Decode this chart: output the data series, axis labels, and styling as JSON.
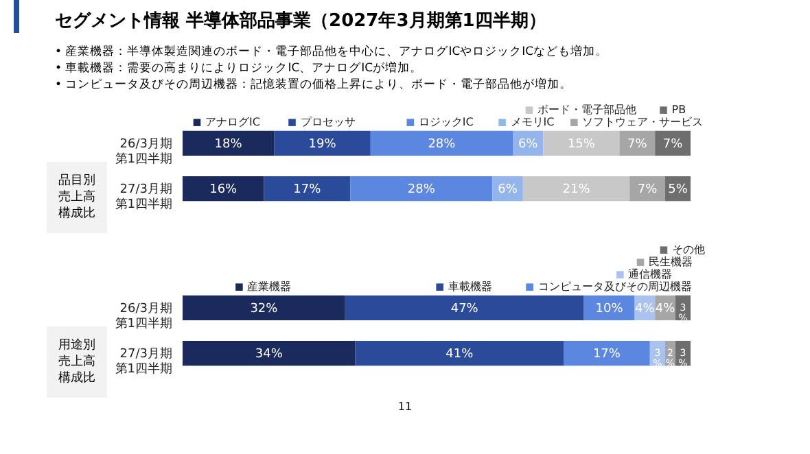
{
  "chart_data": [
    {
      "type": "bar",
      "orientation": "horizontal",
      "stacked": true,
      "legend": "top",
      "title": "セグメント情報  半導体部品事業（2027年3月期第1四半期）",
      "annotations": [
        "•  産業機器：半導体製造関連のボード・電子部品他を中心に、アナログICやロジックICなども増加。",
        "•  車載機器：需要の高まりによりロジックIC、アナログICが増加。",
        "•  コンピュータ及びその周辺機器：記憶装置の価格上昇により、ボード・電子部品他が増加。"
      ],
      "ylabel": "品目別売上高構成比",
      "categories": [
        "26/3月期第1四半期",
        "27/3月期第1四半期"
      ],
      "series": [
        {
          "name": "アナログIC",
          "color": "#1b2a5c",
          "values": [
            18,
            16
          ],
          "value_labels": [
            "18%",
            "16%"
          ]
        },
        {
          "name": "プロセッサ",
          "color": "#2a4a9a",
          "values": [
            19,
            17
          ],
          "value_labels": [
            "19%",
            "17%"
          ]
        },
        {
          "name": "ロジックIC",
          "color": "#5b87e0",
          "values": [
            28,
            28
          ],
          "value_labels": [
            "28%",
            "28%"
          ]
        },
        {
          "name": "メモリIC",
          "color": "#94b4ec",
          "values": [
            6,
            6
          ],
          "value_labels": [
            "6%",
            "6%"
          ]
        },
        {
          "name": "ボード・電子部品他",
          "color": "#c8c8c8",
          "values": [
            15,
            21
          ],
          "value_labels": [
            "15%",
            "21%"
          ]
        },
        {
          "name": "ソフトウェア・サービス",
          "color": "#a6a6a6",
          "values": [
            7,
            7
          ],
          "value_labels": [
            "7%",
            "7%"
          ]
        },
        {
          "name": "PB",
          "color": "#6e6e6e",
          "values": [
            7,
            5
          ],
          "value_labels": [
            "7%",
            "5%"
          ]
        }
      ]
    },
    {
      "type": "bar",
      "orientation": "horizontal",
      "stacked": true,
      "legend": "top",
      "ylabel": "用途別売上高構成比",
      "annotations": [
        "11"
      ],
      "categories": [
        "26/3月期第1四半期",
        "27/3月期第1四半期"
      ],
      "series": [
        {
          "name": "産業機器",
          "color": "#1b2a5c",
          "values": [
            32,
            34
          ],
          "value_labels": [
            "32%",
            "34%"
          ]
        },
        {
          "name": "車載機器",
          "color": "#2a4a9a",
          "values": [
            47,
            41
          ],
          "value_labels": [
            "47%",
            "41%"
          ]
        },
        {
          "name": "コンピュータ及びその周辺機器",
          "color": "#5b87e0",
          "values": [
            10,
            17
          ],
          "value_labels": [
            "10%",
            "17%"
          ]
        },
        {
          "name": "通信機器",
          "color": "#a9c2ee",
          "values": [
            4,
            3
          ],
          "value_labels": [
            "4%",
            "3%"
          ]
        },
        {
          "name": "民生機器",
          "color": "#a6a6a6",
          "values": [
            4,
            2
          ],
          "value_labels": [
            "4%",
            "2%"
          ]
        },
        {
          "name": "その他",
          "color": "#6e6e6e",
          "values": [
            3,
            3
          ],
          "value_labels": [
            "3%",
            "3%"
          ]
        }
      ]
    }
  ]
}
